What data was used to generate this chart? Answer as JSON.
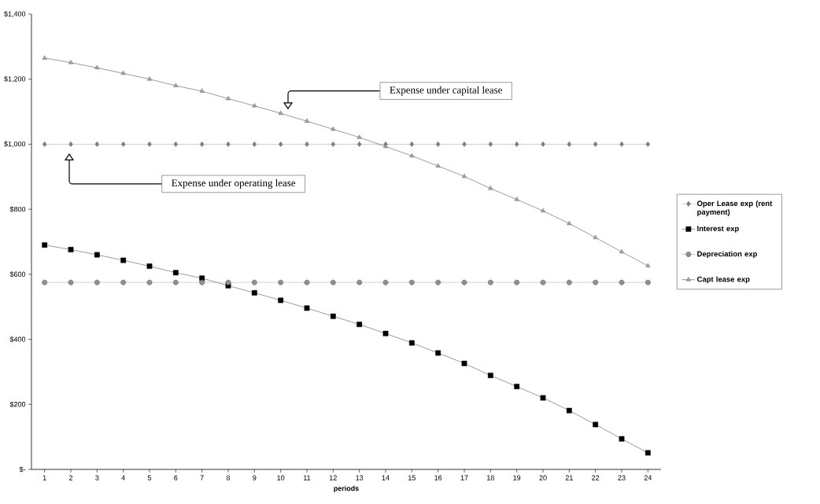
{
  "chart_data": {
    "type": "line",
    "xlabel": "periods",
    "categories": [
      "1",
      "2",
      "3",
      "4",
      "5",
      "6",
      "7",
      "8",
      "9",
      "10",
      "11",
      "12",
      "13",
      "14",
      "15",
      "16",
      "17",
      "18",
      "19",
      "20",
      "21",
      "22",
      "23",
      "24"
    ],
    "series": [
      {
        "name": "Oper Lease exp (rent payment)",
        "color": "#808080",
        "marker": "diamond",
        "values": [
          1000,
          1000,
          1000,
          1000,
          1000,
          1000,
          1000,
          1000,
          1000,
          1000,
          1000,
          1000,
          1000,
          1000,
          1000,
          1000,
          1000,
          1000,
          1000,
          1000,
          1000,
          1000,
          1000,
          1000
        ]
      },
      {
        "name": "Interest exp",
        "color": "#000000",
        "marker": "square",
        "values": [
          690,
          676,
          660,
          643,
          625,
          605,
          588,
          565,
          543,
          520,
          496,
          471,
          446,
          418,
          389,
          358,
          326,
          289,
          255,
          220,
          181,
          138,
          94,
          51
        ]
      },
      {
        "name": "Depreciation exp",
        "color": "#909090",
        "marker": "circle",
        "values": [
          575,
          575,
          575,
          575,
          575,
          575,
          575,
          575,
          575,
          575,
          575,
          575,
          575,
          575,
          575,
          575,
          575,
          575,
          575,
          575,
          575,
          575,
          575,
          575
        ]
      },
      {
        "name": "Capt lease exp",
        "color": "#a6a6a6",
        "marker": "triangle",
        "values": [
          1265,
          1251,
          1235,
          1218,
          1200,
          1180,
          1163,
          1140,
          1118,
          1095,
          1071,
          1046,
          1021,
          993,
          964,
          933,
          901,
          864,
          830,
          795,
          756,
          713,
          669,
          626
        ]
      }
    ],
    "ylim": [
      0,
      1400
    ],
    "yticks": [
      {
        "value": 0,
        "label": "$-"
      },
      {
        "value": 200,
        "label": "$200"
      },
      {
        "value": 400,
        "label": "$400"
      },
      {
        "value": 600,
        "label": "$600"
      },
      {
        "value": 800,
        "label": "$800"
      },
      {
        "value": 1000,
        "label": "$1,000"
      },
      {
        "value": 1200,
        "label": "$1,200"
      },
      {
        "value": 1400,
        "label": "$1,400"
      }
    ],
    "grid": false,
    "legend": "right",
    "line_style": "solid",
    "annotations": [
      "Expense under capital lease",
      "Expense under operating lease"
    ]
  }
}
